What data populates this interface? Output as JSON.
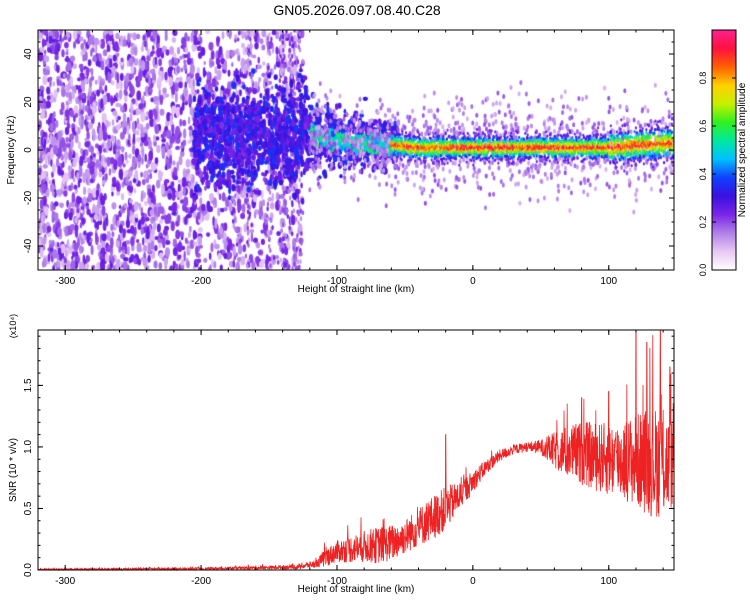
{
  "title": "GN05.2026.097.08.40.C28",
  "chart_data": [
    {
      "type": "heatmap",
      "xlabel": "Height of straight line (km)",
      "ylabel": "Frequency (Hz)",
      "xlim": [
        -320,
        148
      ],
      "ylim": [
        -50,
        50
      ],
      "xticks": [
        -300,
        -200,
        -100,
        0,
        100
      ],
      "xtick_labels": [
        "-300",
        "-200",
        "-100",
        "0",
        "100"
      ],
      "yticks": [
        -40,
        -20,
        0,
        20,
        40
      ],
      "ytick_labels": [
        "-40",
        "-20",
        "0",
        "20",
        "40"
      ],
      "colorbar": {
        "label": "Normalized spectral amplitude",
        "range": [
          0,
          1
        ],
        "ticks": [
          0,
          0.2,
          0.4,
          0.6,
          0.8
        ],
        "tick_labels": [
          "0.0",
          "0.2",
          "0.4",
          "0.6",
          "0.8"
        ],
        "colormap": [
          "#ffffff",
          "#e8c8f5",
          "#b080e8",
          "#7a25e6",
          "#3a10e0",
          "#1040ff",
          "#00c0ff",
          "#00e8a0",
          "#30f020",
          "#c8f000",
          "#ffd000",
          "#ff6000",
          "#ff1040",
          "#ff2090"
        ]
      },
      "regions": [
        {
          "x_range": [
            -320,
            -180
          ],
          "amplitude": 0.15,
          "pattern": "scattered broadband speckle across all frequencies"
        },
        {
          "x_range": [
            -180,
            -125
          ],
          "amplitude": 0.2,
          "pattern": "broadband speckle, stronger near 0 Hz"
        },
        {
          "x_range": [
            -120,
            -55
          ],
          "amplitude": 0.35,
          "pattern": "band centred near 0 Hz, about ±12 Hz wide"
        },
        {
          "x_range": [
            -55,
            148
          ],
          "amplitude": 0.85,
          "pattern": "narrow line near 0 Hz"
        }
      ],
      "ridge": {
        "x": [
          -120,
          -100,
          -80,
          -60,
          -40,
          -20,
          0,
          20,
          40,
          60,
          80,
          100,
          120,
          148
        ],
        "y": [
          6,
          4,
          3,
          2,
          1,
          1,
          1,
          1,
          1,
          1,
          1,
          1,
          2,
          3
        ]
      }
    },
    {
      "type": "line",
      "xlabel": "Height of straight line (km)",
      "ylabel": "SNR (10 * v/v)",
      "y_multiplier": "(x10⁴)",
      "xlim": [
        -320,
        148
      ],
      "ylim": [
        0,
        1.95
      ],
      "xticks": [
        -300,
        -200,
        -100,
        0,
        100
      ],
      "xtick_labels": [
        "-300",
        "-200",
        "-100",
        "0",
        "100"
      ],
      "yticks": [
        0,
        0.5,
        1.0,
        1.5
      ],
      "ytick_labels": [
        "0.0",
        "0.5",
        "1.0",
        "1.5"
      ],
      "color": "#ee2222",
      "series": [
        {
          "envelope_x": [
            -320,
            -200,
            -150,
            -130,
            -115,
            -110,
            -100,
            -90,
            -80,
            -70,
            -60,
            -50,
            -40,
            -30,
            -20,
            -10,
            0,
            10,
            20,
            30,
            40,
            50,
            60,
            70,
            80,
            90,
            100,
            110,
            120,
            130,
            140,
            148
          ],
          "envelope_mean": [
            0.005,
            0.01,
            0.02,
            0.025,
            0.05,
            0.09,
            0.15,
            0.17,
            0.19,
            0.2,
            0.22,
            0.27,
            0.35,
            0.42,
            0.5,
            0.6,
            0.72,
            0.84,
            0.93,
            0.98,
            1.0,
            1.0,
            0.97,
            0.96,
            0.95,
            0.92,
            0.9,
            0.9,
            0.89,
            0.88,
            0.87,
            0.86
          ],
          "envelope_spread": [
            0.005,
            0.01,
            0.015,
            0.02,
            0.03,
            0.07,
            0.09,
            0.11,
            0.13,
            0.15,
            0.15,
            0.14,
            0.16,
            0.18,
            0.18,
            0.12,
            0.09,
            0.06,
            0.05,
            0.04,
            0.04,
            0.06,
            0.15,
            0.22,
            0.26,
            0.28,
            0.3,
            0.32,
            0.38,
            0.45,
            0.45,
            0.35
          ],
          "peaks": [
            [
              -20,
              1.1
            ],
            [
              120,
              1.95
            ],
            [
              128,
              1.85
            ],
            [
              138,
              1.95
            ],
            [
              145,
              1.65
            ],
            [
              100,
              1.45
            ],
            [
              80,
              1.4
            ]
          ]
        }
      ]
    }
  ]
}
